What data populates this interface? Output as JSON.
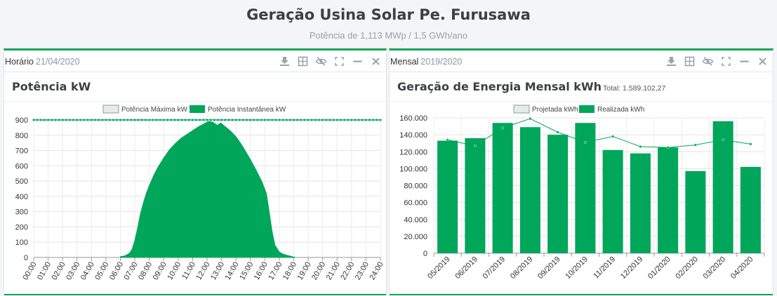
{
  "header": {
    "title": "Geração Usina Solar Pe. Furusawa",
    "subtitle": "Potência de 1,113 MWp / 1,5 GWh/ano"
  },
  "colors": {
    "accent": "#0fa65b",
    "realized": "#00a65a",
    "projected_fill": "#e3ece6",
    "max_line": "#00a65a"
  },
  "toolbar_icons": [
    "download-icon",
    "table-icon",
    "eye-slash-icon",
    "expand-icon",
    "minimize-icon",
    "close-icon"
  ],
  "left_panel": {
    "label": "Horário",
    "date": "21/04/2020",
    "chart_title": "Potência kW"
  },
  "right_panel": {
    "label": "Mensal",
    "date": "2019/2020",
    "chart_title": "Geração de Energia Mensal kWh",
    "total_label": "Total: 1.589.102,27"
  },
  "chart_data": [
    {
      "type": "area",
      "title": "Potência kW",
      "legend": [
        "Potência Máxima kW",
        "Potência Instantânea kW"
      ],
      "legend_position": "top",
      "grid": true,
      "ylim": [
        0,
        900
      ],
      "yticks": [
        "0",
        "100",
        "200",
        "300",
        "400",
        "500",
        "600",
        "700",
        "800",
        "900"
      ],
      "x_ticks": [
        "00:00",
        "01:00",
        "02:00",
        "03:00",
        "04:00",
        "05:00",
        "06:00",
        "07:00",
        "08:00",
        "09:00",
        "10:00",
        "11:00",
        "12:00",
        "13:00",
        "14:00",
        "15:00",
        "16:00",
        "17:00",
        "18:00",
        "19:00",
        "20:00",
        "21:00",
        "22:00",
        "23:00",
        "24:00"
      ],
      "series": [
        {
          "name": "Potência Máxima kW",
          "type": "line",
          "x_hours": [
            0,
            24
          ],
          "y": [
            900,
            900
          ]
        },
        {
          "name": "Potência Instantânea kW",
          "type": "area",
          "x_hours": [
            6.0,
            6.3,
            6.6,
            6.8,
            7.0,
            7.2,
            7.4,
            7.6,
            7.8,
            8.0,
            8.3,
            8.6,
            9.0,
            9.4,
            9.8,
            10.2,
            10.6,
            11.0,
            11.4,
            11.8,
            12.1,
            12.4,
            12.7,
            12.95,
            13.2,
            13.4,
            13.7,
            14.0,
            14.3,
            14.6,
            15.0,
            15.4,
            15.8,
            16.1,
            16.3,
            16.5,
            16.7,
            17.0,
            17.3,
            17.6,
            17.9,
            18.1
          ],
          "y": [
            5,
            10,
            25,
            50,
            110,
            195,
            290,
            360,
            420,
            470,
            535,
            590,
            650,
            705,
            745,
            780,
            805,
            830,
            855,
            875,
            890,
            885,
            865,
            880,
            860,
            845,
            820,
            790,
            750,
            705,
            640,
            570,
            495,
            420,
            300,
            170,
            80,
            35,
            20,
            12,
            5,
            0
          ]
        }
      ]
    },
    {
      "type": "bar",
      "title": "Geração de Energia Mensal kWh",
      "legend": [
        "Projetada kWh",
        "Realizada kWh"
      ],
      "legend_position": "top",
      "grid": true,
      "ylim": [
        0,
        160000
      ],
      "yticks": [
        "0",
        "20.000",
        "40.000",
        "60.000",
        "80.000",
        "100.000",
        "120.000",
        "140.000",
        "160.000"
      ],
      "categories": [
        "05/2019",
        "06/2019",
        "07/2019",
        "08/2019",
        "09/2019",
        "10/2019",
        "11/2019",
        "12/2019",
        "01/2020",
        "02/2020",
        "03/2020",
        "04/2020"
      ],
      "series": [
        {
          "name": "Realizada kWh",
          "type": "bar",
          "values": [
            133000,
            136000,
            154000,
            149000,
            140000,
            154000,
            122000,
            118000,
            125000,
            97000,
            156000,
            102000
          ]
        },
        {
          "name": "Projetada kWh",
          "type": "line",
          "values": [
            134000,
            127000,
            148000,
            159000,
            143000,
            131000,
            138000,
            126000,
            125000,
            128000,
            134000,
            129000
          ]
        }
      ]
    }
  ]
}
